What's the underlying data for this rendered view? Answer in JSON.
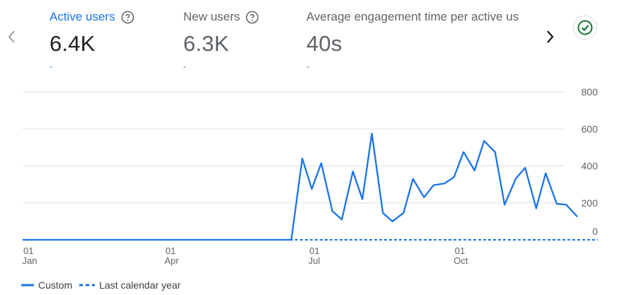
{
  "metrics": [
    {
      "label": "Active users",
      "value": "6.4K",
      "delta": "-",
      "selected": true
    },
    {
      "label": "New users",
      "value": "6.3K",
      "delta": "-"
    },
    {
      "label": "Average engagement time per active us",
      "value": "40s",
      "delta": "-"
    }
  ],
  "icons": {
    "prev": "chevron-left-icon",
    "next": "chevron-right-icon",
    "help": "help-circle-icon",
    "status": "check-circle-icon"
  },
  "colors": {
    "accent": "#1a73e8",
    "series": "#1a73e8",
    "status_green": "#137333",
    "grid": "#e0e0e0",
    "muted": "#5f6368"
  },
  "chart_data": {
    "type": "line",
    "x_range": [
      "Jan 01",
      "Dec 31"
    ],
    "ylim": [
      0,
      800
    ],
    "yticks": [
      0,
      200,
      400,
      600,
      800
    ],
    "grid": true,
    "legend_position": "bottom-left",
    "xticks": [
      {
        "day": "01",
        "month": "Jan"
      },
      {
        "day": "01",
        "month": "Apr"
      },
      {
        "day": "01",
        "month": "Jul"
      },
      {
        "day": "01",
        "month": "Oct"
      }
    ],
    "series": [
      {
        "name": "Custom",
        "style": "solid",
        "points": [
          [
            "Jan 01",
            0
          ],
          [
            "Jun 05",
            0
          ],
          [
            "Jun 20",
            0
          ],
          [
            "Jun 27",
            440
          ],
          [
            "Jul 03",
            275
          ],
          [
            "Jul 09",
            415
          ],
          [
            "Jul 16",
            155
          ],
          [
            "Jul 22",
            110
          ],
          [
            "Jul 29",
            370
          ],
          [
            "Aug 04",
            220
          ],
          [
            "Aug 10",
            575
          ],
          [
            "Aug 17",
            145
          ],
          [
            "Aug 23",
            100
          ],
          [
            "Aug 30",
            145
          ],
          [
            "Sep 05",
            330
          ],
          [
            "Sep 12",
            230
          ],
          [
            "Sep 18",
            295
          ],
          [
            "Sep 25",
            305
          ],
          [
            "Oct 01",
            340
          ],
          [
            "Oct 07",
            475
          ],
          [
            "Oct 14",
            375
          ],
          [
            "Oct 20",
            535
          ],
          [
            "Oct 27",
            475
          ],
          [
            "Nov 02",
            190
          ],
          [
            "Nov 09",
            330
          ],
          [
            "Nov 15",
            390
          ],
          [
            "Nov 22",
            170
          ],
          [
            "Nov 28",
            360
          ],
          [
            "Dec 05",
            195
          ],
          [
            "Dec 11",
            190
          ],
          [
            "Dec 18",
            125
          ]
        ]
      },
      {
        "name": "Last calendar year",
        "style": "dashed",
        "points": [
          [
            "Jan 01",
            0
          ],
          [
            "Dec 31",
            0
          ]
        ]
      }
    ]
  }
}
